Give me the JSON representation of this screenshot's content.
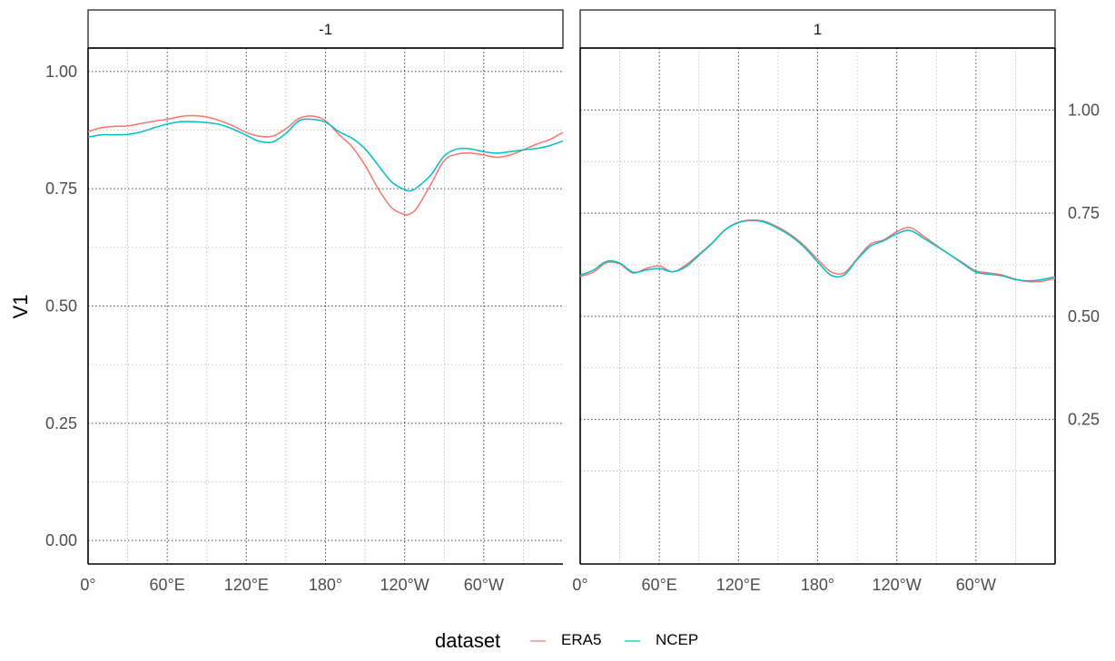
{
  "chart_data": {
    "type": "line",
    "ylabel": "V1",
    "x_tick_labels": [
      "0°",
      "60°E",
      "120°E",
      "180°",
      "120°W",
      "60°W"
    ],
    "legend": {
      "title": "dataset",
      "placement": "bottom"
    },
    "colors": {
      "ERA5": "#F8766D",
      "NCEP": "#00BFC4"
    },
    "panels": [
      {
        "strip_label": "-1",
        "y_tick_labels": [
          "0.00",
          "0.25",
          "0.50",
          "0.75",
          "1.00"
        ],
        "y_ticks": [
          0.0,
          0.25,
          0.5,
          0.75,
          1.0
        ],
        "ylim": [
          -0.05,
          1.05
        ],
        "y_axis_side": "left",
        "series": [
          {
            "name": "ERA5",
            "x": [
              0,
              10,
              20,
              30,
              40,
              50,
              60,
              70,
              80,
              90,
              100,
              110,
              120,
              130,
              140,
              150,
              160,
              170,
              180,
              190,
              200,
              210,
              220,
              230,
              240,
              245,
              250,
              260,
              270,
              280,
              290,
              300,
              310,
              320,
              330,
              340,
              350,
              360
            ],
            "values": [
              0.872,
              0.88,
              0.883,
              0.884,
              0.889,
              0.894,
              0.898,
              0.904,
              0.906,
              0.903,
              0.895,
              0.884,
              0.87,
              0.862,
              0.862,
              0.878,
              0.9,
              0.905,
              0.895,
              0.866,
              0.84,
              0.8,
              0.75,
              0.71,
              0.695,
              0.698,
              0.712,
              0.76,
              0.81,
              0.824,
              0.826,
              0.822,
              0.817,
              0.822,
              0.833,
              0.845,
              0.855,
              0.87
            ]
          },
          {
            "name": "NCEP",
            "x": [
              0,
              10,
              20,
              30,
              40,
              50,
              60,
              70,
              80,
              90,
              100,
              110,
              120,
              130,
              140,
              150,
              160,
              170,
              180,
              190,
              200,
              210,
              220,
              230,
              240,
              245,
              250,
              260,
              270,
              280,
              290,
              300,
              310,
              320,
              330,
              340,
              350,
              360
            ],
            "values": [
              0.86,
              0.865,
              0.865,
              0.866,
              0.871,
              0.88,
              0.888,
              0.893,
              0.893,
              0.891,
              0.887,
              0.877,
              0.864,
              0.851,
              0.85,
              0.868,
              0.895,
              0.898,
              0.892,
              0.872,
              0.858,
              0.835,
              0.8,
              0.765,
              0.748,
              0.746,
              0.754,
              0.78,
              0.82,
              0.835,
              0.835,
              0.829,
              0.826,
              0.829,
              0.833,
              0.836,
              0.842,
              0.852
            ]
          }
        ]
      },
      {
        "strip_label": "1",
        "y_tick_labels": [
          "0.25",
          "0.50",
          "0.75",
          "1.00"
        ],
        "y_ticks": [
          0.25,
          0.5,
          0.75,
          1.0
        ],
        "ylim": [
          -0.1,
          1.15
        ],
        "y_axis_side": "right",
        "series": [
          {
            "name": "ERA5",
            "x": [
              0,
              10,
              20,
              30,
              40,
              50,
              60,
              70,
              80,
              90,
              100,
              110,
              120,
              130,
              140,
              150,
              160,
              170,
              180,
              190,
              200,
              210,
              220,
              230,
              240,
              250,
              260,
              270,
              280,
              290,
              300,
              310,
              320,
              330,
              340,
              350,
              360
            ],
            "values": [
              0.597,
              0.607,
              0.63,
              0.627,
              0.605,
              0.616,
              0.622,
              0.608,
              0.624,
              0.65,
              0.678,
              0.71,
              0.728,
              0.733,
              0.73,
              0.716,
              0.697,
              0.671,
              0.638,
              0.608,
              0.605,
              0.64,
              0.675,
              0.685,
              0.705,
              0.715,
              0.695,
              0.672,
              0.65,
              0.63,
              0.61,
              0.605,
              0.6,
              0.59,
              0.584,
              0.585,
              0.592
            ]
          },
          {
            "name": "NCEP",
            "x": [
              0,
              10,
              20,
              30,
              40,
              50,
              60,
              70,
              80,
              90,
              100,
              110,
              120,
              130,
              140,
              150,
              160,
              170,
              180,
              190,
              200,
              210,
              220,
              230,
              240,
              250,
              260,
              270,
              280,
              290,
              300,
              310,
              320,
              330,
              340,
              350,
              360
            ],
            "values": [
              0.6,
              0.612,
              0.633,
              0.629,
              0.607,
              0.612,
              0.616,
              0.608,
              0.62,
              0.648,
              0.677,
              0.71,
              0.727,
              0.732,
              0.728,
              0.713,
              0.694,
              0.667,
              0.632,
              0.6,
              0.6,
              0.638,
              0.67,
              0.683,
              0.7,
              0.708,
              0.69,
              0.67,
              0.65,
              0.628,
              0.607,
              0.602,
              0.598,
              0.589,
              0.586,
              0.589,
              0.596
            ]
          }
        ]
      }
    ]
  }
}
